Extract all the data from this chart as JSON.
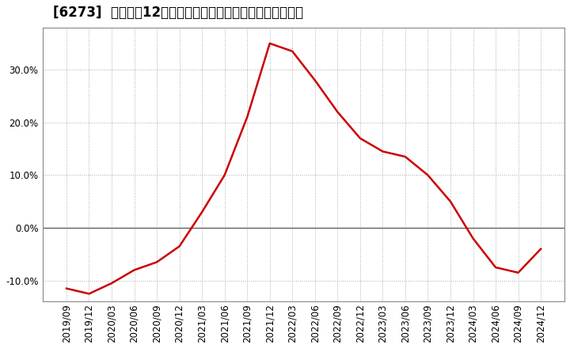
{
  "title": "[6273]  売上高の12か月移動合計の対前年同期増減率の推移",
  "line_color": "#cc0000",
  "background_color": "#ffffff",
  "grid_color": "#aaaaaa",
  "zero_line_color": "#555555",
  "x_labels": [
    "2019/09",
    "2019/12",
    "2020/03",
    "2020/06",
    "2020/09",
    "2020/12",
    "2021/03",
    "2021/06",
    "2021/09",
    "2021/12",
    "2022/03",
    "2022/06",
    "2022/09",
    "2022/12",
    "2023/03",
    "2023/06",
    "2023/09",
    "2023/12",
    "2024/03",
    "2024/06",
    "2024/09",
    "2024/12"
  ],
  "y_values": [
    -11.5,
    -12.5,
    -10.5,
    -8.0,
    -6.5,
    -3.5,
    3.0,
    10.0,
    21.0,
    35.0,
    33.5,
    28.0,
    22.0,
    17.0,
    14.5,
    13.5,
    10.0,
    5.0,
    -2.0,
    -7.5,
    -8.5,
    -4.0
  ],
  "ylim": [
    -14,
    38
  ],
  "yticks": [
    -10.0,
    0.0,
    10.0,
    20.0,
    30.0
  ],
  "ytick_labels": [
    "-10.0%",
    "0.0%",
    "10.0%",
    "20.0%",
    "30.0%"
  ],
  "title_fontsize": 12,
  "tick_fontsize": 8.5
}
